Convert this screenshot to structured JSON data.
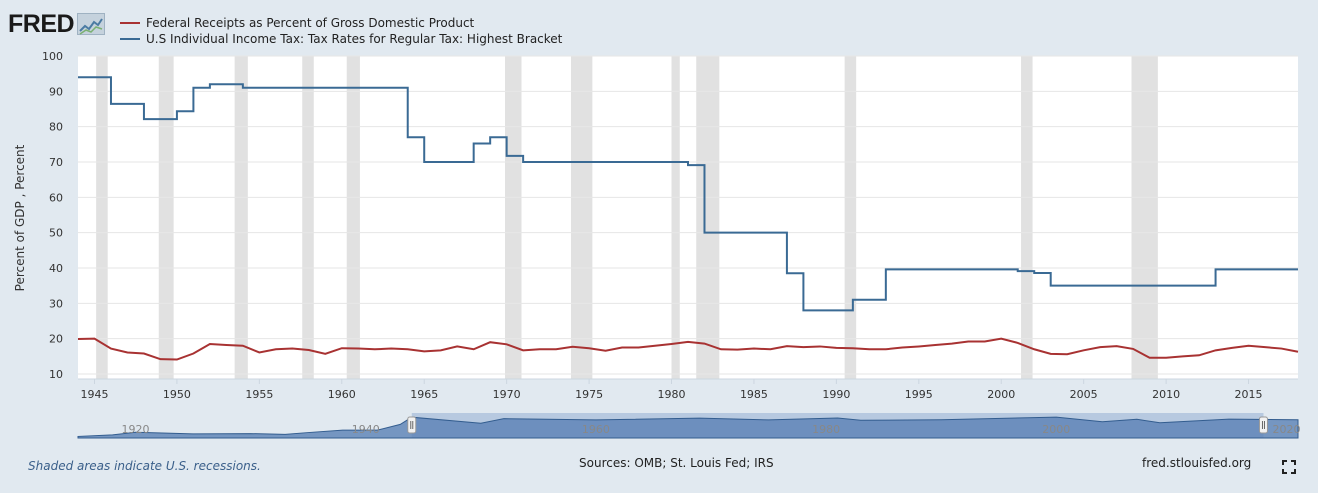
{
  "brand": {
    "name": "FRED",
    "logo_icon": "line-chart-icon"
  },
  "legend": [
    {
      "label": "Federal Receipts as Percent of Gross Domestic Product",
      "color": "#a83232"
    },
    {
      "label": "U.S Individual Income Tax: Tax Rates for Regular Tax: Highest Bracket",
      "color": "#3a6a94"
    }
  ],
  "footer": {
    "note": "Shaded areas indicate U.S. recessions.",
    "sources": "Sources: OMB; St. Louis Fed; IRS",
    "site": "fred.stlouisfed.org"
  },
  "chart_data": {
    "type": "line",
    "ylabel": "Percent of GDP , Percent",
    "ylim": [
      10,
      100
    ],
    "xlim": [
      1944,
      2018
    ],
    "yticks": [
      "100",
      "90",
      "80",
      "70",
      "60",
      "50",
      "40",
      "30",
      "20",
      "10"
    ],
    "xticks": [
      "1945",
      "1950",
      "1955",
      "1960",
      "1965",
      "1970",
      "1975",
      "1980",
      "1985",
      "1990",
      "1995",
      "2000",
      "2005",
      "2010",
      "2015"
    ],
    "grid": true,
    "recessions": [
      [
        1945.1,
        1945.8
      ],
      [
        1948.9,
        1949.8
      ],
      [
        1953.5,
        1954.3
      ],
      [
        1957.6,
        1958.3
      ],
      [
        1960.3,
        1961.1
      ],
      [
        1969.9,
        1970.9
      ],
      [
        1973.9,
        1975.2
      ],
      [
        1980.0,
        1980.5
      ],
      [
        1981.5,
        1982.9
      ],
      [
        1990.5,
        1991.2
      ],
      [
        2001.2,
        2001.9
      ],
      [
        2007.9,
        2009.5
      ]
    ],
    "series": [
      {
        "name": "Federal Receipts as Percent of Gross Domestic Product",
        "color": "#a83232",
        "step": false,
        "points": [
          [
            1944,
            19.9
          ],
          [
            1945,
            20.0
          ],
          [
            1946,
            17.2
          ],
          [
            1947,
            16.1
          ],
          [
            1948,
            15.8
          ],
          [
            1949,
            14.2
          ],
          [
            1950,
            14.1
          ],
          [
            1951,
            15.8
          ],
          [
            1952,
            18.5
          ],
          [
            1953,
            18.2
          ],
          [
            1954,
            18.0
          ],
          [
            1955,
            16.1
          ],
          [
            1956,
            17.0
          ],
          [
            1957,
            17.2
          ],
          [
            1958,
            16.8
          ],
          [
            1959,
            15.7
          ],
          [
            1960,
            17.3
          ],
          [
            1961,
            17.2
          ],
          [
            1962,
            17.0
          ],
          [
            1963,
            17.2
          ],
          [
            1964,
            17.0
          ],
          [
            1965,
            16.4
          ],
          [
            1966,
            16.7
          ],
          [
            1967,
            17.8
          ],
          [
            1968,
            17.0
          ],
          [
            1969,
            19.0
          ],
          [
            1970,
            18.4
          ],
          [
            1971,
            16.7
          ],
          [
            1972,
            17.0
          ],
          [
            1973,
            17.0
          ],
          [
            1974,
            17.7
          ],
          [
            1975,
            17.3
          ],
          [
            1976,
            16.6
          ],
          [
            1977,
            17.5
          ],
          [
            1978,
            17.5
          ],
          [
            1979,
            18.0
          ],
          [
            1980,
            18.5
          ],
          [
            1981,
            19.1
          ],
          [
            1982,
            18.6
          ],
          [
            1983,
            17.0
          ],
          [
            1984,
            16.9
          ],
          [
            1985,
            17.2
          ],
          [
            1986,
            17.0
          ],
          [
            1987,
            17.9
          ],
          [
            1988,
            17.6
          ],
          [
            1989,
            17.8
          ],
          [
            1990,
            17.4
          ],
          [
            1991,
            17.3
          ],
          [
            1992,
            17.0
          ],
          [
            1993,
            17.0
          ],
          [
            1994,
            17.5
          ],
          [
            1995,
            17.8
          ],
          [
            1996,
            18.2
          ],
          [
            1997,
            18.6
          ],
          [
            1998,
            19.2
          ],
          [
            1999,
            19.2
          ],
          [
            2000,
            20.0
          ],
          [
            2001,
            18.8
          ],
          [
            2002,
            17.0
          ],
          [
            2003,
            15.7
          ],
          [
            2004,
            15.6
          ],
          [
            2005,
            16.7
          ],
          [
            2006,
            17.6
          ],
          [
            2007,
            17.9
          ],
          [
            2008,
            17.1
          ],
          [
            2009,
            14.6
          ],
          [
            2010,
            14.6
          ],
          [
            2011,
            15.0
          ],
          [
            2012,
            15.3
          ],
          [
            2013,
            16.7
          ],
          [
            2014,
            17.4
          ],
          [
            2015,
            18.0
          ],
          [
            2016,
            17.6
          ],
          [
            2017,
            17.2
          ],
          [
            2018,
            16.3
          ]
        ]
      },
      {
        "name": "U.S Individual Income Tax: Tax Rates for Regular Tax: Highest Bracket",
        "color": "#3a6a94",
        "step": true,
        "points": [
          [
            1944,
            94
          ],
          [
            1946,
            86.45
          ],
          [
            1948,
            82.13
          ],
          [
            1950,
            84.36
          ],
          [
            1951,
            91
          ],
          [
            1952,
            92
          ],
          [
            1954,
            91
          ],
          [
            1964,
            77
          ],
          [
            1965,
            70
          ],
          [
            1968,
            75.25
          ],
          [
            1969,
            77
          ],
          [
            1970,
            71.75
          ],
          [
            1971,
            70
          ],
          [
            1981,
            69.13
          ],
          [
            1982,
            50
          ],
          [
            1987,
            38.5
          ],
          [
            1988,
            28
          ],
          [
            1991,
            31
          ],
          [
            1993,
            39.6
          ],
          [
            2001,
            39.1
          ],
          [
            2002,
            38.6
          ],
          [
            2003,
            35
          ],
          [
            2013,
            39.6
          ],
          [
            2018,
            39.6
          ]
        ]
      }
    ],
    "navigator": {
      "labels": [
        "1920",
        "1940",
        "1960",
        "1980",
        "2000",
        "2020"
      ],
      "range": [
        1915,
        2021
      ],
      "selected": [
        1944,
        2018
      ]
    }
  }
}
